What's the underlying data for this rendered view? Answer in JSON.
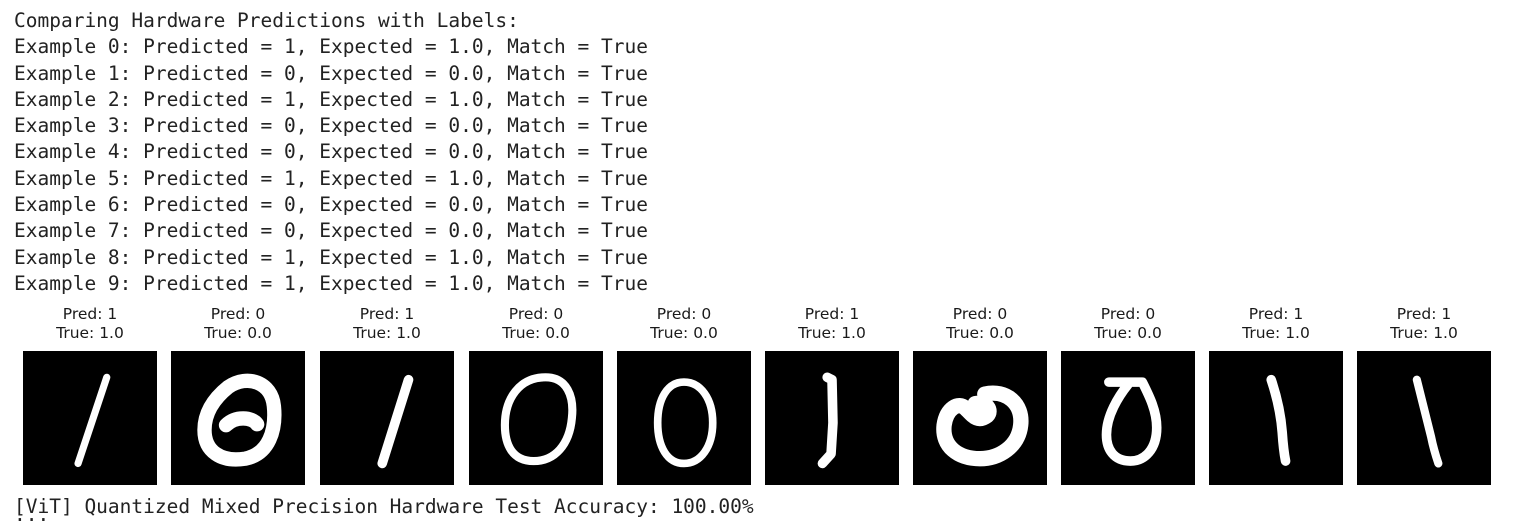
{
  "output": {
    "header": "Comparing Hardware Predictions with Labels:",
    "lines": [
      "Example 0: Predicted = 1, Expected = 1.0, Match = True",
      "Example 1: Predicted = 0, Expected = 0.0, Match = True",
      "Example 2: Predicted = 1, Expected = 1.0, Match = True",
      "Example 3: Predicted = 0, Expected = 0.0, Match = True",
      "Example 4: Predicted = 0, Expected = 0.0, Match = True",
      "Example 5: Predicted = 1, Expected = 1.0, Match = True",
      "Example 6: Predicted = 0, Expected = 0.0, Match = True",
      "Example 7: Predicted = 0, Expected = 0.0, Match = True",
      "Example 8: Predicted = 1, Expected = 1.0, Match = True",
      "Example 9: Predicted = 1, Expected = 1.0, Match = True"
    ],
    "accuracy_line": "[ViT] Quantized Mixed Precision Hardware Test Accuracy: 100.00%",
    "cutoff_line": "..."
  },
  "figure": {
    "panels": [
      {
        "pred": "Pred: 1",
        "true": "True: 1.0",
        "digit": "1"
      },
      {
        "pred": "Pred: 0",
        "true": "True: 0.0",
        "digit": "0"
      },
      {
        "pred": "Pred: 1",
        "true": "True: 1.0",
        "digit": "1"
      },
      {
        "pred": "Pred: 0",
        "true": "True: 0.0",
        "digit": "0"
      },
      {
        "pred": "Pred: 0",
        "true": "True: 0.0",
        "digit": "0"
      },
      {
        "pred": "Pred: 1",
        "true": "True: 1.0",
        "digit": "1"
      },
      {
        "pred": "Pred: 0",
        "true": "True: 0.0",
        "digit": "0"
      },
      {
        "pred": "Pred: 0",
        "true": "True: 0.0",
        "digit": "0"
      },
      {
        "pred": "Pred: 1",
        "true": "True: 1.0",
        "digit": "1"
      },
      {
        "pred": "Pred: 1",
        "true": "True: 1.0",
        "digit": "1"
      }
    ],
    "colors": {
      "image_background": "#000000",
      "digit_stroke": "#ffffff"
    }
  }
}
